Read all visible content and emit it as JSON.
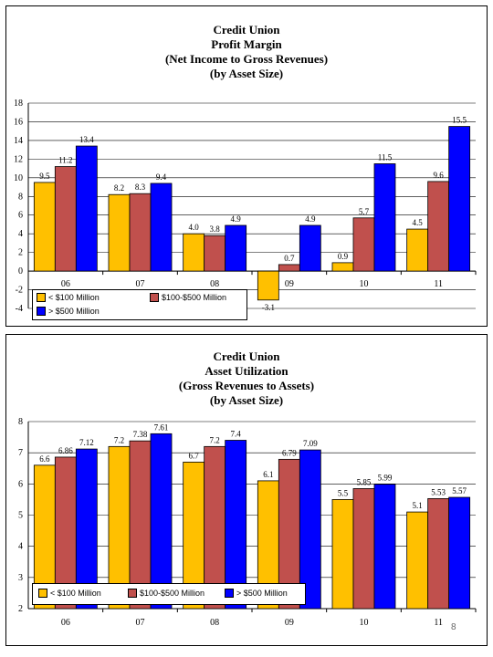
{
  "page_number": "8",
  "chart_data": [
    {
      "type": "bar",
      "title": [
        "Credit Union",
        "Profit Margin",
        "(Net Income to Gross Revenues)",
        "(by Asset Size)"
      ],
      "categories": [
        "06",
        "07",
        "08",
        "09",
        "10",
        "11"
      ],
      "ylim": [
        -4,
        18
      ],
      "yticks": [
        "-4",
        "-2",
        "0",
        "2",
        "4",
        "6",
        "8",
        "10",
        "12",
        "14",
        "16",
        "18"
      ],
      "grid": true,
      "legend_position": "bottom-left",
      "series": [
        {
          "name": "< $100 Million",
          "color": "#FFC000",
          "values": [
            9.5,
            8.2,
            4.0,
            -3.1,
            0.9,
            4.5
          ],
          "labels": [
            "9.5",
            "8.2",
            "4.0",
            "-3.1",
            "0.9",
            "4.5"
          ]
        },
        {
          "name": "$100-$500 Million",
          "color": "#C0504D",
          "values": [
            11.2,
            8.3,
            3.8,
            0.7,
            5.7,
            9.6
          ],
          "labels": [
            "11.2",
            "8.3",
            "3.8",
            "0.7",
            "5.7",
            "9.6"
          ]
        },
        {
          "name": "> $500 Million",
          "color": "#0000FF",
          "values": [
            13.4,
            9.4,
            4.9,
            4.9,
            11.5,
            15.5
          ],
          "labels": [
            "13.4",
            "9.4",
            "4.9",
            "4.9",
            "11.5",
            "15.5"
          ]
        }
      ]
    },
    {
      "type": "bar",
      "title": [
        "Credit Union",
        "Asset Utilization",
        "(Gross Revenues to Assets)",
        "(by Asset Size)"
      ],
      "categories": [
        "06",
        "07",
        "08",
        "09",
        "10",
        "11"
      ],
      "ylim": [
        2,
        8
      ],
      "yticks": [
        "2",
        "3",
        "4",
        "5",
        "6",
        "7",
        "8"
      ],
      "grid": true,
      "legend_position": "bottom-left",
      "series": [
        {
          "name": "< $100 Million",
          "color": "#FFC000",
          "values": [
            6.6,
            7.2,
            6.7,
            6.1,
            5.5,
            5.1
          ],
          "labels": [
            "6.6",
            "7.2",
            "6.7",
            "6.1",
            "5.5",
            "5.1"
          ]
        },
        {
          "name": "$100-$500 Million",
          "color": "#C0504D",
          "values": [
            6.86,
            7.38,
            7.2,
            6.79,
            5.85,
            5.53
          ],
          "labels": [
            "6.86",
            "7.38",
            "7.2",
            "6.79",
            "5.85",
            "5.53"
          ]
        },
        {
          "name": "> $500 Million",
          "color": "#0000FF",
          "values": [
            7.12,
            7.61,
            7.4,
            7.09,
            5.99,
            5.57
          ],
          "labels": [
            "7.12",
            "7.61",
            "7.4",
            "7.09",
            "5.99",
            "5.57"
          ]
        }
      ]
    }
  ]
}
